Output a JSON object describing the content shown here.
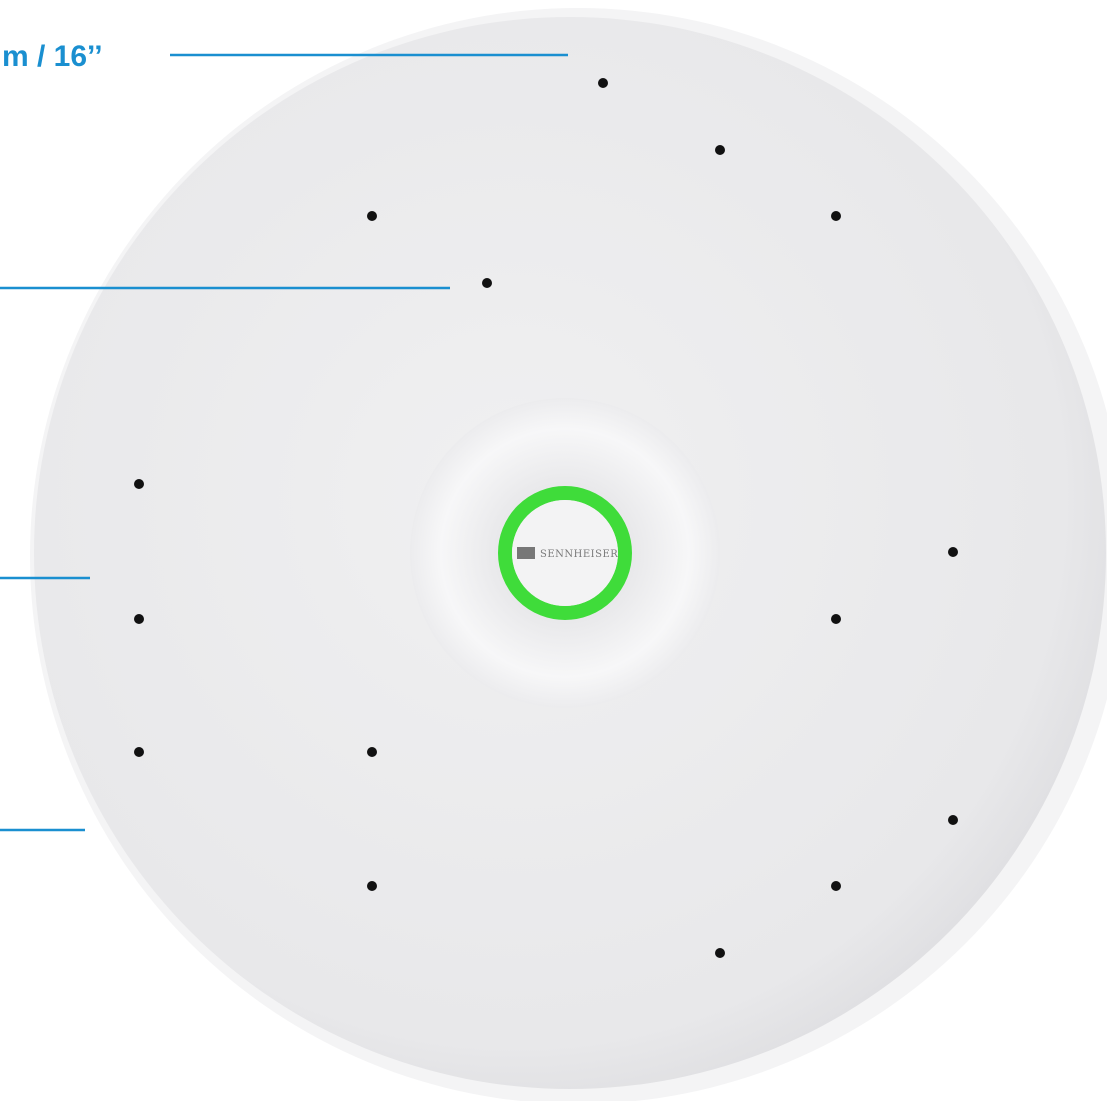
{
  "annotation": "m / 16’’",
  "logo": "SENNHEISER"
}
